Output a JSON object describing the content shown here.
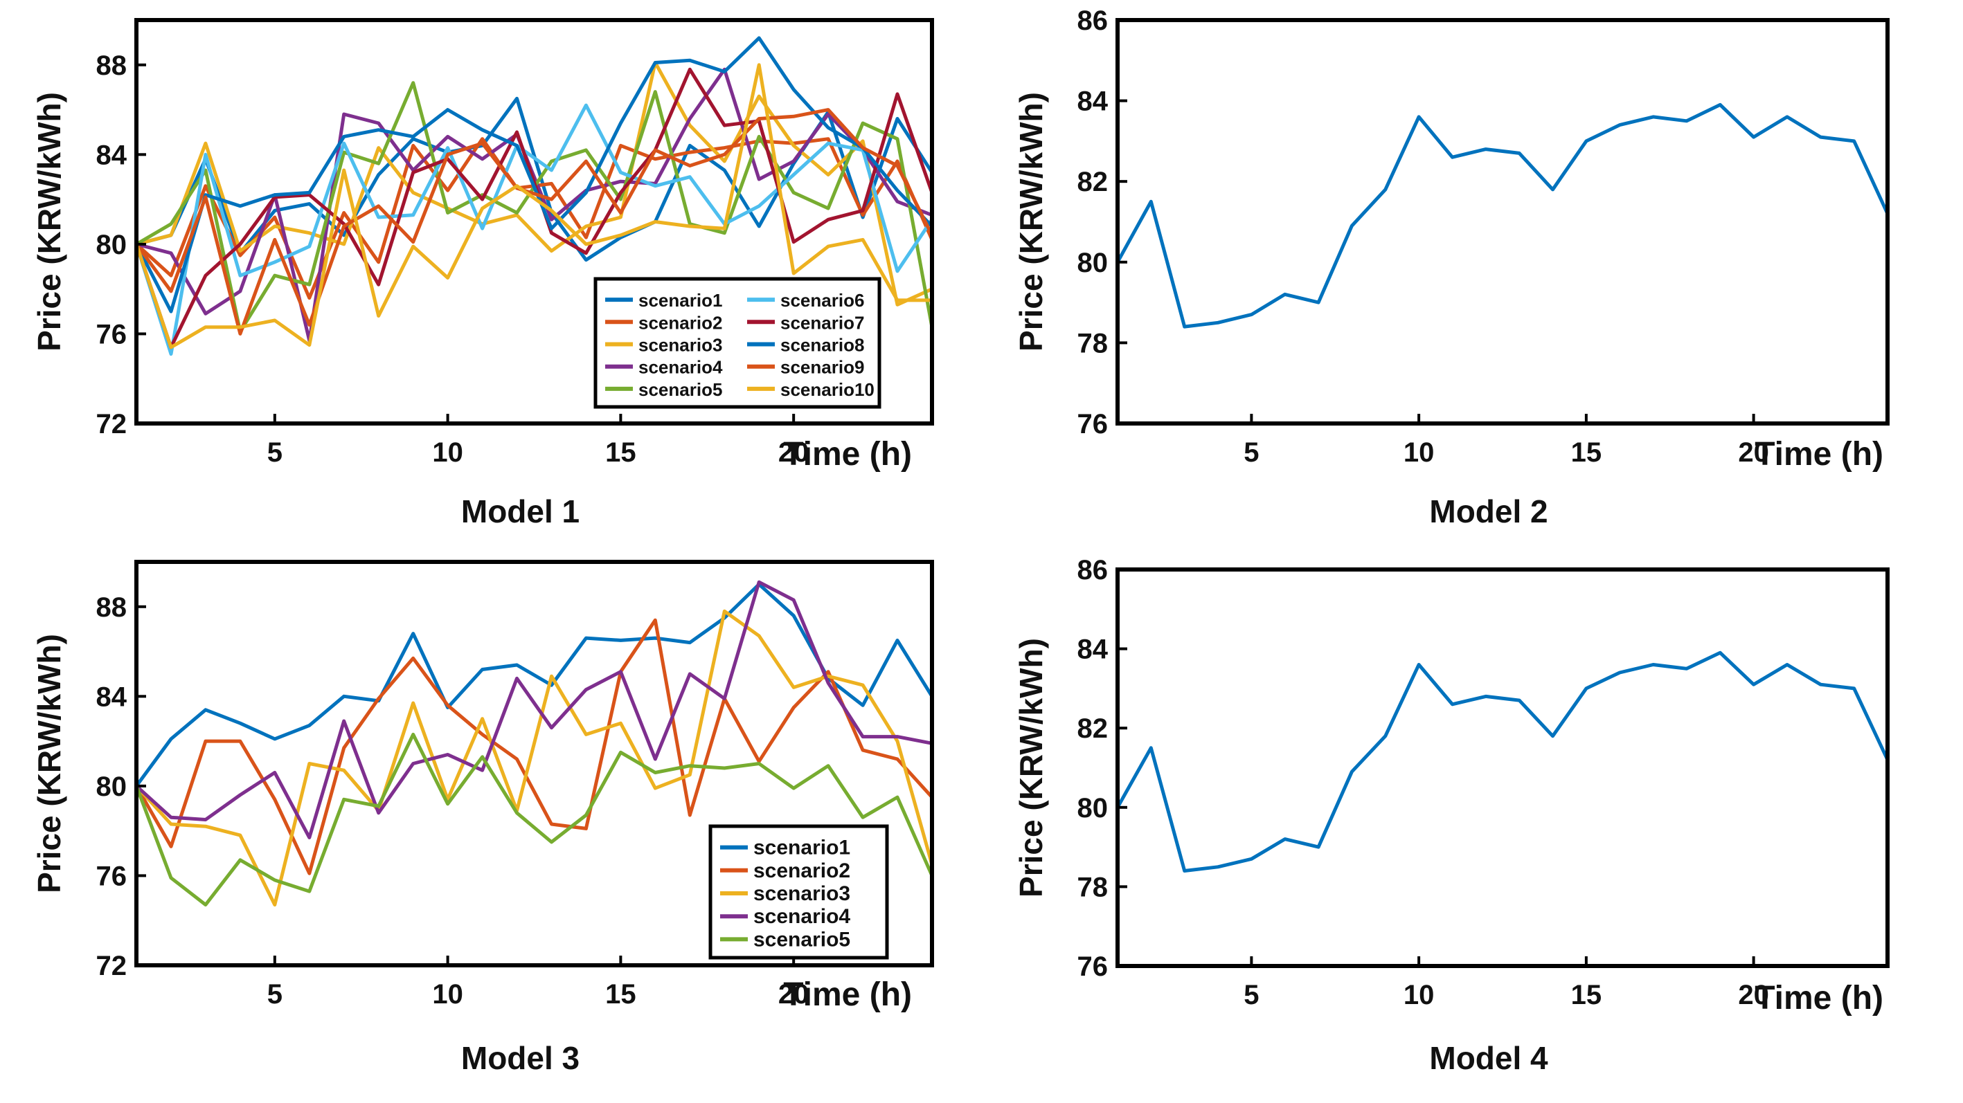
{
  "chart_data": [
    {
      "type": "line",
      "caption": "Model 1",
      "xlabel": "Time (h)",
      "ylabel": "Price (KRW/kWh)",
      "xlim": [
        1,
        24
      ],
      "ylim": [
        72,
        90
      ],
      "xticks": [
        5,
        10,
        15,
        20
      ],
      "yticks": [
        72,
        76,
        80,
        84,
        88
      ],
      "legend": {
        "position": "bottom-right",
        "columns": 2
      },
      "x": [
        1,
        2,
        3,
        4,
        5,
        6,
        7,
        8,
        9,
        10,
        11,
        12,
        13,
        14,
        15,
        16,
        17,
        18,
        19,
        20,
        21,
        22,
        23,
        24
      ],
      "series": [
        {
          "name": "scenario1",
          "color": "#0072BD",
          "values": [
            80,
            80.4,
            83.8,
            79.6,
            81.5,
            81.8,
            80.4,
            83.1,
            84.7,
            84.1,
            84.4,
            86.5,
            81.4,
            79.3,
            80.3,
            81.0,
            84.4,
            83.3,
            80.8,
            83.6,
            85.9,
            81.2,
            85.6,
            83.2
          ]
        },
        {
          "name": "scenario2",
          "color": "#D95319",
          "values": [
            80,
            78.6,
            82.6,
            79.5,
            81.2,
            77.6,
            81.4,
            79.2,
            84.4,
            82.4,
            84.7,
            82.5,
            82.7,
            80.3,
            84.4,
            83.8,
            84.1,
            84.3,
            84.6,
            84.5,
            84.7,
            81.3,
            83.7,
            80.2
          ]
        },
        {
          "name": "scenario3",
          "color": "#EDB120",
          "values": [
            80,
            80.4,
            84.5,
            79.7,
            80.8,
            80.5,
            80.0,
            84.3,
            82.3,
            81.6,
            80.9,
            81.3,
            79.7,
            80.8,
            81.2,
            88.1,
            85.3,
            83.7,
            86.6,
            84.4,
            83.1,
            84.6,
            77.3,
            78.0
          ]
        },
        {
          "name": "scenario4",
          "color": "#7E2F8E",
          "values": [
            80,
            79.6,
            76.9,
            77.9,
            82.2,
            75.7,
            85.8,
            85.4,
            83.3,
            84.8,
            83.8,
            84.9,
            81.1,
            82.4,
            82.8,
            82.7,
            85.6,
            87.8,
            82.9,
            83.7,
            85.8,
            84.2,
            81.9,
            81.3
          ]
        },
        {
          "name": "scenario5",
          "color": "#77AC30",
          "values": [
            80,
            80.9,
            83.3,
            76.1,
            78.6,
            78.2,
            84.1,
            83.6,
            87.2,
            81.4,
            82.2,
            81.4,
            83.7,
            84.2,
            82.0,
            86.8,
            80.9,
            80.5,
            84.8,
            82.3,
            81.6,
            85.4,
            84.7,
            76.3
          ]
        },
        {
          "name": "scenario6",
          "color": "#4DBEEE",
          "values": [
            80,
            75.1,
            84.0,
            78.6,
            79.2,
            79.9,
            84.5,
            81.2,
            81.3,
            84.3,
            80.7,
            84.4,
            83.3,
            86.2,
            83.2,
            82.6,
            83.0,
            80.9,
            81.7,
            83.1,
            84.5,
            84.2,
            78.8,
            81.1
          ]
        },
        {
          "name": "scenario7",
          "color": "#A2142F",
          "values": [
            80,
            75.4,
            78.6,
            80.0,
            82.1,
            82.2,
            80.9,
            78.2,
            83.2,
            83.8,
            82.0,
            85.0,
            80.5,
            79.6,
            82.3,
            84.2,
            87.8,
            85.3,
            85.5,
            80.1,
            81.1,
            81.5,
            86.7,
            82.3
          ]
        },
        {
          "name": "scenario8",
          "color": "#0072BD",
          "values": [
            80,
            77.0,
            82.2,
            81.7,
            82.2,
            82.3,
            84.8,
            85.1,
            84.8,
            86.0,
            85.1,
            84.4,
            80.7,
            82.3,
            85.4,
            88.1,
            88.2,
            87.7,
            89.2,
            86.9,
            85.2,
            84.3,
            82.4,
            80.8
          ]
        },
        {
          "name": "scenario9",
          "color": "#D95319",
          "values": [
            80,
            77.9,
            82.1,
            76.0,
            80.2,
            76.4,
            80.8,
            81.7,
            80.1,
            84.0,
            84.5,
            82.5,
            82.0,
            83.7,
            81.4,
            84.2,
            83.5,
            84.0,
            85.6,
            85.7,
            86.0,
            84.3,
            83.5,
            80.4
          ]
        },
        {
          "name": "scenario10",
          "color": "#EDB120",
          "values": [
            80,
            75.4,
            76.3,
            76.3,
            76.6,
            75.5,
            83.3,
            76.8,
            79.9,
            78.5,
            81.6,
            82.6,
            81.5,
            80.0,
            80.4,
            81.0,
            80.8,
            80.7,
            88.0,
            78.7,
            79.9,
            80.2,
            77.5,
            77.5
          ]
        }
      ]
    },
    {
      "type": "line",
      "caption": "Model 2",
      "xlabel": "Time (h)",
      "ylabel": "Price (KRW/kWh)",
      "xlim": [
        1,
        24
      ],
      "ylim": [
        76,
        86
      ],
      "xticks": [
        5,
        10,
        15,
        20
      ],
      "yticks": [
        76,
        78,
        80,
        82,
        84,
        86
      ],
      "x": [
        1,
        2,
        3,
        4,
        5,
        6,
        7,
        8,
        9,
        10,
        11,
        12,
        13,
        14,
        15,
        16,
        17,
        18,
        19,
        20,
        21,
        22,
        23,
        24
      ],
      "series": [
        {
          "color": "#0072BD",
          "values": [
            80.0,
            81.5,
            78.4,
            78.5,
            78.7,
            79.2,
            79.0,
            80.9,
            81.8,
            83.6,
            82.6,
            82.8,
            82.7,
            81.8,
            83.0,
            83.4,
            83.6,
            83.5,
            83.9,
            83.1,
            83.6,
            83.1,
            83.0,
            81.2
          ]
        }
      ]
    },
    {
      "type": "line",
      "caption": "Model 3",
      "xlabel": "Time (h)",
      "ylabel": "Price (KRW/kWh)",
      "xlim": [
        1,
        24
      ],
      "ylim": [
        72,
        90
      ],
      "xticks": [
        5,
        10,
        15,
        20
      ],
      "yticks": [
        72,
        76,
        80,
        84,
        88
      ],
      "legend": {
        "position": "bottom-right",
        "columns": 1
      },
      "x": [
        1,
        2,
        3,
        4,
        5,
        6,
        7,
        8,
        9,
        10,
        11,
        12,
        13,
        14,
        15,
        16,
        17,
        18,
        19,
        20,
        21,
        22,
        23,
        24
      ],
      "series": [
        {
          "name": "scenario1",
          "color": "#0072BD",
          "values": [
            80,
            82.1,
            83.4,
            82.8,
            82.1,
            82.7,
            84.0,
            83.8,
            86.8,
            83.5,
            85.2,
            85.4,
            84.5,
            86.6,
            86.5,
            86.6,
            86.4,
            87.5,
            89.0,
            87.6,
            84.8,
            83.6,
            86.5,
            84.0
          ]
        },
        {
          "name": "scenario2",
          "color": "#D95319",
          "values": [
            80,
            77.3,
            82.0,
            82.0,
            79.4,
            76.1,
            81.7,
            83.9,
            85.7,
            83.6,
            82.3,
            81.2,
            78.3,
            78.1,
            85.1,
            87.4,
            78.7,
            83.9,
            81.1,
            83.5,
            85.1,
            81.6,
            81.2,
            79.5
          ]
        },
        {
          "name": "scenario3",
          "color": "#EDB120",
          "values": [
            80,
            78.3,
            78.2,
            77.8,
            74.7,
            81.0,
            80.7,
            78.9,
            83.7,
            79.4,
            83.0,
            78.9,
            84.9,
            82.3,
            82.8,
            79.9,
            80.5,
            87.8,
            86.7,
            84.4,
            84.9,
            84.5,
            82.0,
            76.5
          ]
        },
        {
          "name": "scenario4",
          "color": "#7E2F8E",
          "values": [
            80,
            78.6,
            78.5,
            79.6,
            80.6,
            77.7,
            82.9,
            78.8,
            81.0,
            81.4,
            80.7,
            84.8,
            82.6,
            84.3,
            85.1,
            81.2,
            85.0,
            83.9,
            89.1,
            88.3,
            84.6,
            82.2,
            82.2,
            81.9
          ]
        },
        {
          "name": "scenario5",
          "color": "#77AC30",
          "values": [
            80,
            75.9,
            74.7,
            76.7,
            75.8,
            75.3,
            79.4,
            79.1,
            82.3,
            79.2,
            81.3,
            78.8,
            77.5,
            78.7,
            81.5,
            80.6,
            80.9,
            80.8,
            81.0,
            79.9,
            80.9,
            78.6,
            79.5,
            76.0
          ]
        }
      ]
    },
    {
      "type": "line",
      "caption": "Model 4",
      "xlabel": "Time (h)",
      "ylabel": "Price (KRW/kWh)",
      "xlim": [
        1,
        24
      ],
      "ylim": [
        76,
        86
      ],
      "xticks": [
        5,
        10,
        15,
        20
      ],
      "yticks": [
        76,
        78,
        80,
        82,
        84,
        86
      ],
      "x": [
        1,
        2,
        3,
        4,
        5,
        6,
        7,
        8,
        9,
        10,
        11,
        12,
        13,
        14,
        15,
        16,
        17,
        18,
        19,
        20,
        21,
        22,
        23,
        24
      ],
      "series": [
        {
          "color": "#0072BD",
          "values": [
            80.0,
            81.5,
            78.4,
            78.5,
            78.7,
            79.2,
            79.0,
            80.9,
            81.8,
            83.6,
            82.6,
            82.8,
            82.7,
            81.8,
            83.0,
            83.4,
            83.6,
            83.5,
            83.9,
            83.1,
            83.6,
            83.1,
            83.0,
            81.2
          ]
        }
      ]
    }
  ]
}
